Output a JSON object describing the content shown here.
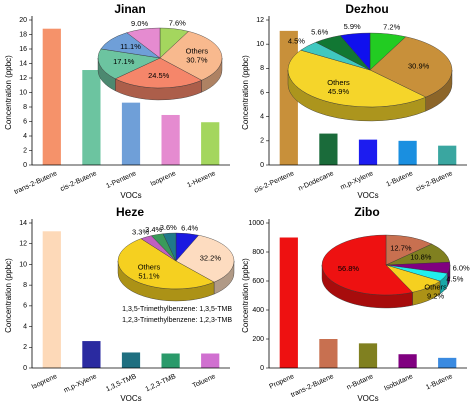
{
  "chart_data": [
    {
      "type": "bar",
      "title": "Jinan",
      "xlabel": "VOCs",
      "ylabel": "Concentration (ppbc)",
      "categories": [
        "trans-2-Butene",
        "cis-2-Butene",
        "1-Pentene",
        "Isoprene",
        "1-Hexene"
      ],
      "values": [
        18.8,
        13.1,
        8.6,
        6.9,
        5.9
      ],
      "colors": [
        "#f5926a",
        "#6cc4a0",
        "#6f9fd8",
        "#e58bd0",
        "#a4d65e"
      ],
      "ylim": [
        0,
        20
      ],
      "yticks": [
        0,
        2,
        4,
        6,
        8,
        10,
        12,
        14,
        16,
        18,
        20
      ],
      "inset": {
        "type": "pie",
        "labels": [
          null,
          "Others",
          null,
          null,
          null,
          null
        ],
        "values": [
          7.6,
          30.7,
          24.5,
          17.1,
          11.1,
          9.0
        ],
        "value_labels": [
          "7.6%",
          "30.7%",
          "24.5%",
          "17.1%",
          "11.1%",
          "9.0%"
        ],
        "colors": [
          "#a4d65e",
          "#f8b98e",
          "#f5866a",
          "#6cc4a0",
          "#6f9fd8",
          "#e58bd0"
        ]
      }
    },
    {
      "type": "bar",
      "title": "Dezhou",
      "xlabel": "VOCs",
      "ylabel": "Concentration (ppbc)",
      "categories": [
        "cis-2-Pentene",
        "n-Dodecane",
        "m,p-Xylene",
        "1-Butene",
        "cis-2-Butene"
      ],
      "values": [
        11.1,
        2.6,
        2.1,
        2.0,
        1.6
      ],
      "colors": [
        "#c8903a",
        "#1a6b3a",
        "#1c1cf0",
        "#1a8fe0",
        "#3aa6a0"
      ],
      "ylim": [
        0,
        12
      ],
      "yticks": [
        0,
        2,
        4,
        6,
        8,
        10,
        12
      ],
      "inset": {
        "type": "pie",
        "labels": [
          null,
          null,
          "Others",
          null,
          null,
          null
        ],
        "values": [
          7.2,
          30.9,
          45.9,
          4.5,
          5.6,
          5.9
        ],
        "value_labels": [
          "7.2%",
          "30.9%",
          "45.9%",
          "4.5%",
          "5.6%",
          "5.9%"
        ],
        "colors": [
          "#22cc22",
          "#c8903a",
          "#f5d52a",
          "#40c8c0",
          "#117733",
          "#1010ee"
        ]
      }
    },
    {
      "type": "bar",
      "title": "Heze",
      "xlabel": "VOCs",
      "ylabel": "Concentration (ppbc)",
      "categories": [
        "Isoprene",
        "m,p-Xylene",
        "1,3,5-TMB",
        "1,2,3-TMB",
        "Toluene"
      ],
      "values": [
        13.2,
        2.6,
        1.5,
        1.4,
        1.4
      ],
      "colors": [
        "#fdd9b8",
        "#2a2aa0",
        "#1f6f80",
        "#2a9a6a",
        "#d070d0"
      ],
      "ylim": [
        0,
        14
      ],
      "yticks": [
        0,
        2,
        4,
        6,
        8,
        10,
        12,
        14
      ],
      "annotations": [
        "1,3,5-Trimethylbenzene: 1,3,5-TMB",
        "1,2,3-Trimethylbenzene: 1,2,3-TMB"
      ],
      "inset": {
        "type": "pie",
        "labels": [
          null,
          null,
          "Others",
          null,
          null,
          null
        ],
        "values": [
          6.4,
          32.2,
          51.1,
          3.3,
          3.4,
          3.6
        ],
        "value_labels": [
          "6.4%",
          "32.2%",
          "51.1%",
          "3.3%",
          "3.4%",
          "3.6%"
        ],
        "colors": [
          "#1a1ae0",
          "#fddcc0",
          "#f5d020",
          "#c060c0",
          "#3a9a5a",
          "#207a8a"
        ]
      }
    },
    {
      "type": "bar",
      "title": "Zibo",
      "xlabel": "VOCs",
      "ylabel": "Concentration (ppbc)",
      "categories": [
        "Propene",
        "trans-2-Butene",
        "n-Butane",
        "Isobutane",
        "1-Butene"
      ],
      "values": [
        900,
        200,
        170,
        95,
        70
      ],
      "colors": [
        "#ee1111",
        "#c87050",
        "#808020",
        "#800080",
        "#3a8ae0"
      ],
      "ylim": [
        0,
        1000
      ],
      "yticks": [
        0,
        200,
        400,
        600,
        800,
        1000
      ],
      "inset": {
        "type": "pie",
        "labels": [
          null,
          null,
          null,
          null,
          "Others",
          null
        ],
        "values": [
          12.7,
          10.8,
          6.0,
          4.5,
          9.2,
          56.8
        ],
        "value_labels": [
          "12.7%",
          "10.8%",
          "6.0%",
          "4.5%",
          "9.2%",
          "56.8%"
        ],
        "colors": [
          "#c87050",
          "#808020",
          "#800080",
          "#22eeee",
          "#f5d020",
          "#ee1111"
        ]
      }
    }
  ]
}
